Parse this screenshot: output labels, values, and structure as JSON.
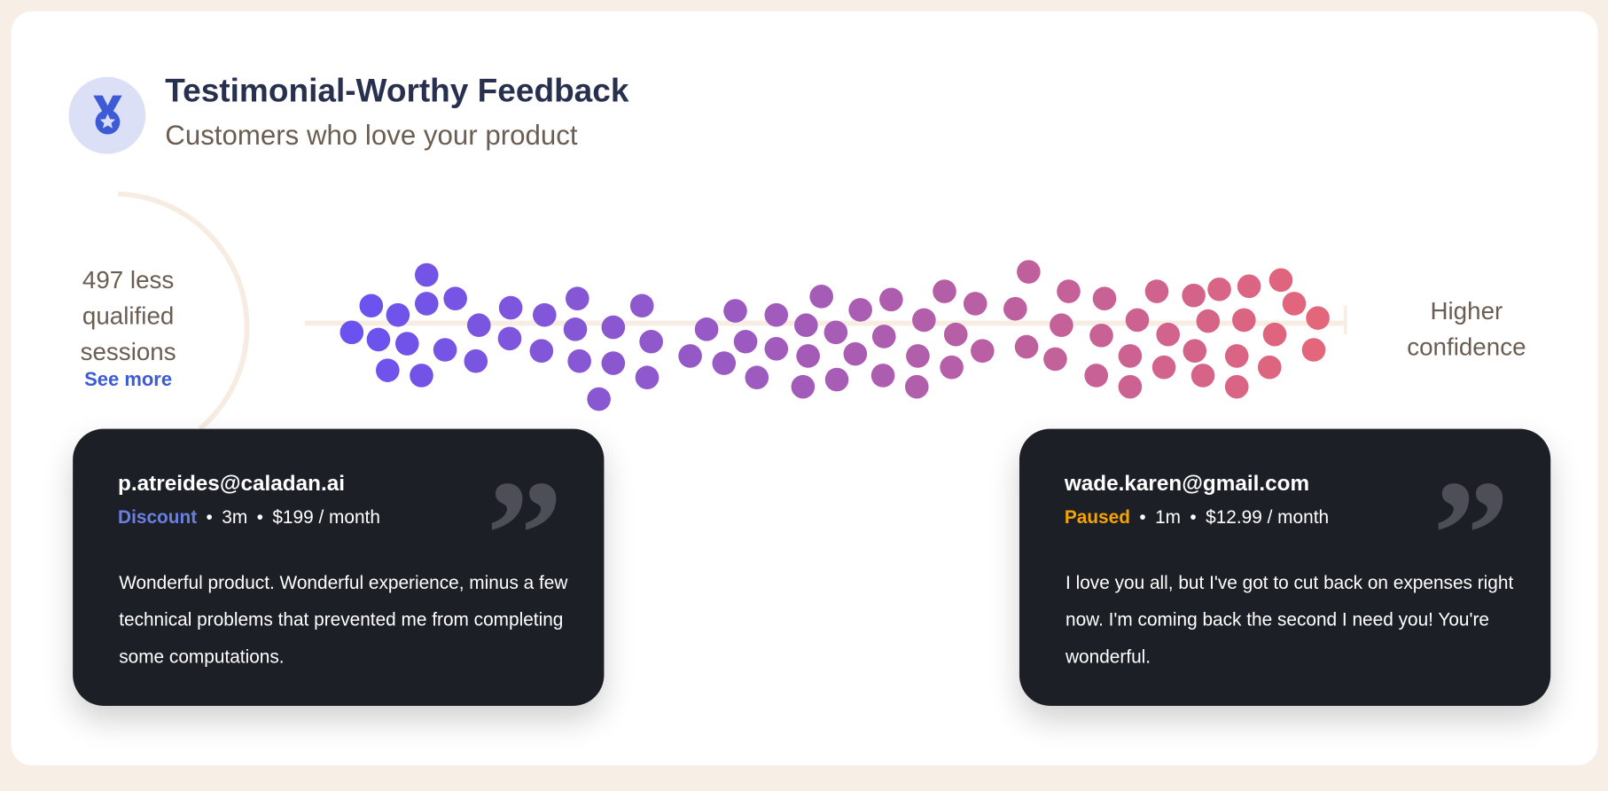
{
  "header": {
    "icon": "medal-icon",
    "title": "Testimonial-Worthy Feedback",
    "subtitle": "Customers who love your product"
  },
  "left_summary": {
    "label": "497 less qualified sessions",
    "link": "See more"
  },
  "right_label": "Higher confidence",
  "colors": {
    "low": "#6a52f0",
    "high": "#e4667a",
    "discount": "#6b7fe0",
    "paused": "#f5a300",
    "card": "#1d1f26"
  },
  "cards": [
    {
      "email": "p.atreides@caladan.ai",
      "status": "Discount",
      "status_color": "#6b7fe0",
      "tenure": "3m",
      "price": "$199 / month",
      "quote": "Wonderful product. Wonderful experience, minus a few technical problems that prevented me from completing some computations."
    },
    {
      "email": "wade.karen@gmail.com",
      "status": "Paused",
      "status_color": "#f5a300",
      "tenure": "1m",
      "price": "$12.99 / month",
      "quote": "I love you all, but I've got to cut back on expenses right now. I'm coming back the second I need you! You're wonderful."
    }
  ],
  "separator": "•",
  "quote_mark": "”"
}
